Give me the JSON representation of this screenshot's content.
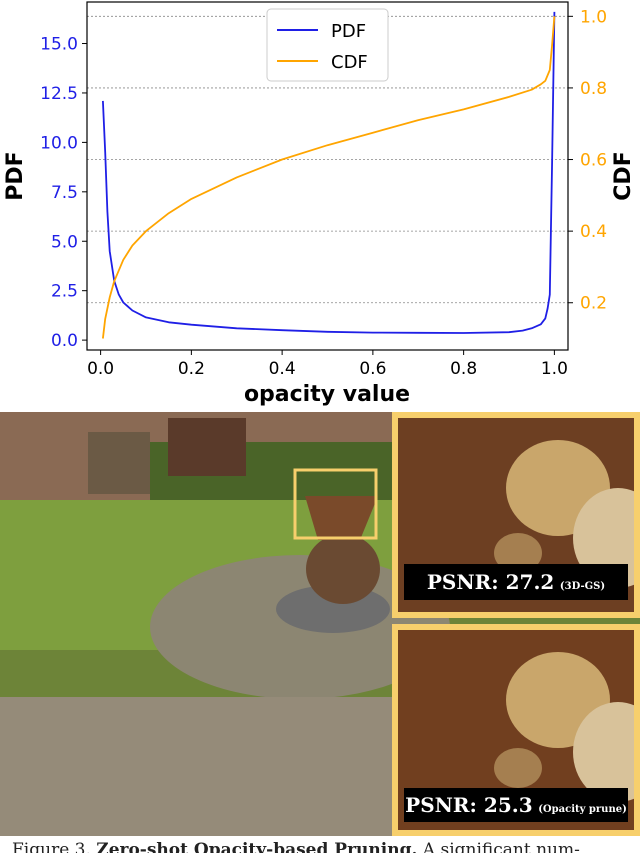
{
  "chart_data": {
    "type": "line",
    "xlabel": "opacity value",
    "ylabel_left": "PDF",
    "ylabel_right": "CDF",
    "x_ticks": [
      "0.0",
      "0.2",
      "0.4",
      "0.6",
      "0.8",
      "1.0"
    ],
    "y_left_ticks": [
      "0.0",
      "2.5",
      "5.0",
      "7.5",
      "10.0",
      "12.5",
      "15.0"
    ],
    "y_right_ticks": [
      "0.2",
      "0.4",
      "0.6",
      "0.8",
      "1.0"
    ],
    "xlim": [
      -0.03,
      1.03
    ],
    "ylim_left": [
      -0.5,
      17.1
    ],
    "ylim_right": [
      0.068,
      1.04
    ],
    "grid": "horizontal",
    "legend_position": "top-center",
    "series": [
      {
        "name": "PDF",
        "axis": "left",
        "color": "#1f1fe6",
        "x": [
          0.005,
          0.01,
          0.015,
          0.02,
          0.03,
          0.04,
          0.05,
          0.07,
          0.1,
          0.15,
          0.2,
          0.3,
          0.4,
          0.5,
          0.6,
          0.7,
          0.8,
          0.9,
          0.93,
          0.95,
          0.97,
          0.98,
          0.985,
          0.99,
          0.995,
          1.0
        ],
        "y": [
          12.1,
          9.5,
          6.5,
          4.5,
          3.0,
          2.3,
          1.9,
          1.5,
          1.15,
          0.9,
          0.78,
          0.6,
          0.5,
          0.42,
          0.38,
          0.37,
          0.36,
          0.4,
          0.48,
          0.6,
          0.8,
          1.1,
          1.6,
          2.3,
          9.0,
          16.6
        ]
      },
      {
        "name": "CDF",
        "axis": "right",
        "color": "#ffa500",
        "x": [
          0.005,
          0.01,
          0.02,
          0.03,
          0.05,
          0.07,
          0.1,
          0.15,
          0.2,
          0.3,
          0.4,
          0.5,
          0.6,
          0.7,
          0.8,
          0.9,
          0.95,
          0.97,
          0.98,
          0.99,
          0.995,
          1.0
        ],
        "y": [
          0.1,
          0.155,
          0.215,
          0.26,
          0.32,
          0.36,
          0.4,
          0.45,
          0.49,
          0.55,
          0.6,
          0.64,
          0.675,
          0.71,
          0.74,
          0.775,
          0.795,
          0.81,
          0.82,
          0.85,
          0.92,
          1.0
        ]
      }
    ]
  },
  "insets": [
    {
      "score": "PSNR: 27.2",
      "method": "(3D-GS)"
    },
    {
      "score": "PSNR: 25.3",
      "method": "(Opacity prune)"
    }
  ],
  "caption": {
    "prefix": "Figure 3.",
    "bold": "Zero-shot Opacity-based Pruning.",
    "rest": "A significant num-"
  }
}
